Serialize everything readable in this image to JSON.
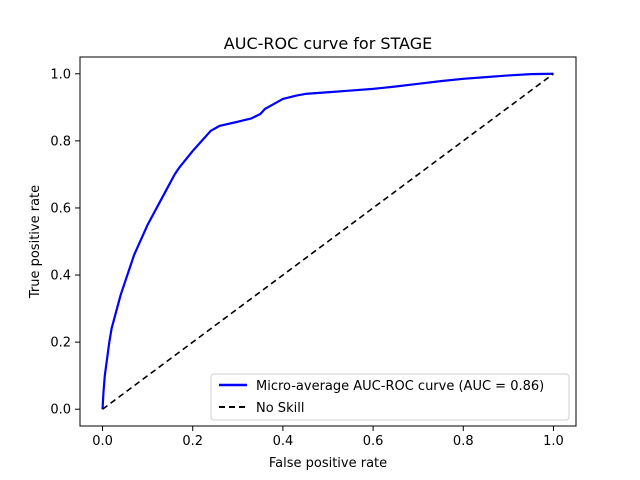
{
  "chart_data": {
    "type": "line",
    "title": "AUC-ROC curve for STAGE",
    "xlabel": "False positive rate",
    "ylabel": "True positive rate",
    "xlim": [
      -0.05,
      1.05
    ],
    "ylim": [
      -0.05,
      1.05
    ],
    "xticks": [
      "0.0",
      "0.2",
      "0.4",
      "0.6",
      "0.8",
      "1.0"
    ],
    "yticks": [
      "0.0",
      "0.2",
      "0.4",
      "0.6",
      "0.8",
      "1.0"
    ],
    "grid": false,
    "legend_position": "lower-right",
    "series": [
      {
        "name": "Micro-average AUC-ROC curve (AUC = 0.86)",
        "color": "#0000ff",
        "style": "solid",
        "x": [
          0.0,
          0.002,
          0.005,
          0.01,
          0.015,
          0.02,
          0.03,
          0.04,
          0.05,
          0.06,
          0.07,
          0.08,
          0.09,
          0.1,
          0.12,
          0.14,
          0.16,
          0.17,
          0.2,
          0.22,
          0.24,
          0.26,
          0.3,
          0.33,
          0.35,
          0.36,
          0.38,
          0.4,
          0.43,
          0.45,
          0.5,
          0.55,
          0.6,
          0.65,
          0.7,
          0.75,
          0.8,
          0.85,
          0.9,
          0.95,
          1.0
        ],
        "y": [
          0.0,
          0.05,
          0.1,
          0.15,
          0.2,
          0.24,
          0.29,
          0.34,
          0.38,
          0.42,
          0.46,
          0.49,
          0.52,
          0.55,
          0.6,
          0.65,
          0.7,
          0.72,
          0.77,
          0.8,
          0.83,
          0.845,
          0.857,
          0.867,
          0.88,
          0.895,
          0.91,
          0.925,
          0.935,
          0.94,
          0.945,
          0.95,
          0.955,
          0.962,
          0.97,
          0.978,
          0.985,
          0.99,
          0.995,
          0.999,
          1.0
        ]
      },
      {
        "name": "No Skill",
        "color": "#000000",
        "style": "dashed",
        "x": [
          0.0,
          1.0
        ],
        "y": [
          0.0,
          1.0
        ]
      }
    ]
  }
}
